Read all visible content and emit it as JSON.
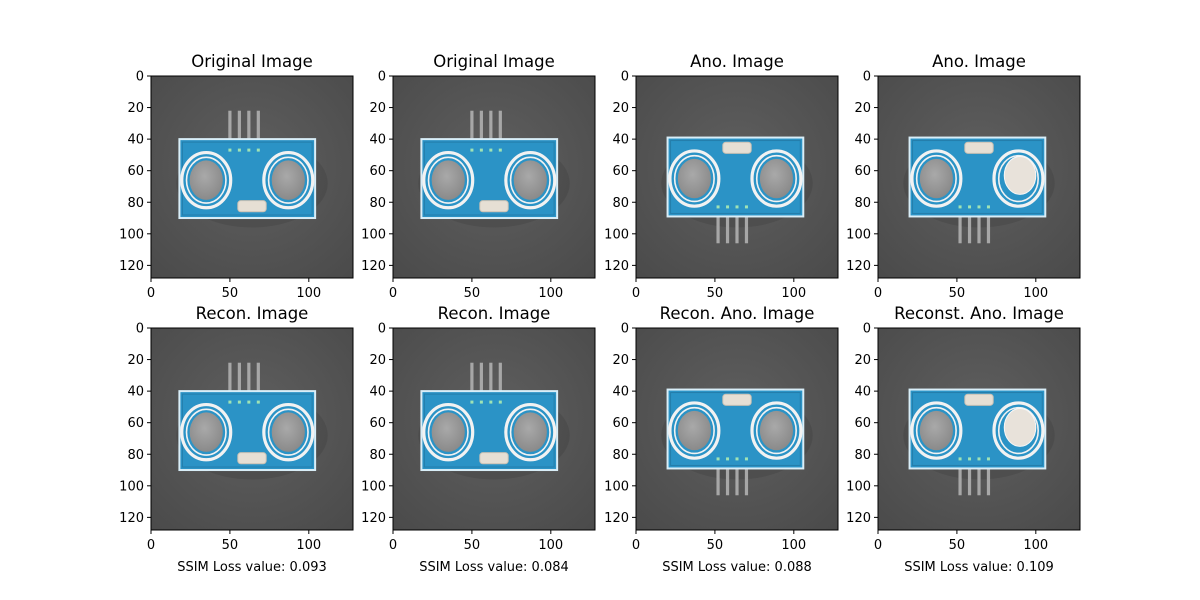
{
  "figure": {
    "colors": {
      "background": "#5f5f5f",
      "background_dark": "#4a4a4a",
      "board": "#2b93c6",
      "board_dark": "#1f6f99",
      "board_edge": "#d9eef8",
      "ring": "#f2f2f2",
      "lens": "#8a8a8a",
      "lens_inner": "#a9a9a9",
      "pin": "#a7a7a7",
      "crystal": "#e6dfd4",
      "bump": "#e8e2da"
    }
  },
  "chart_data": [
    {
      "type": "image",
      "title": "Original Image",
      "xlabel": "",
      "xlim": [
        0,
        128
      ],
      "ylim": [
        128,
        0
      ],
      "xticks": [
        0,
        50,
        100
      ],
      "yticks": [
        0,
        20,
        40,
        60,
        80,
        100,
        120
      ],
      "orientation": "pins-up",
      "has_bump": false
    },
    {
      "type": "image",
      "title": "Original Image",
      "xlabel": "",
      "xlim": [
        0,
        128
      ],
      "ylim": [
        128,
        0
      ],
      "xticks": [
        0,
        50,
        100
      ],
      "yticks": [
        0,
        20,
        40,
        60,
        80,
        100,
        120
      ],
      "orientation": "pins-up",
      "has_bump": false
    },
    {
      "type": "image",
      "title": "Ano. Image",
      "xlabel": "",
      "xlim": [
        0,
        128
      ],
      "ylim": [
        128,
        0
      ],
      "xticks": [
        0,
        50,
        100
      ],
      "yticks": [
        0,
        20,
        40,
        60,
        80,
        100,
        120
      ],
      "orientation": "pins-down",
      "has_bump": false
    },
    {
      "type": "image",
      "title": "Ano. Image",
      "xlabel": "",
      "xlim": [
        0,
        128
      ],
      "ylim": [
        128,
        0
      ],
      "xticks": [
        0,
        50,
        100
      ],
      "yticks": [
        0,
        20,
        40,
        60,
        80,
        100,
        120
      ],
      "orientation": "pins-down",
      "has_bump": true
    },
    {
      "type": "image",
      "title": "Recon. Image",
      "xlabel": "SSIM Loss value: 0.093",
      "xlim": [
        0,
        128
      ],
      "ylim": [
        128,
        0
      ],
      "xticks": [
        0,
        50,
        100
      ],
      "yticks": [
        0,
        20,
        40,
        60,
        80,
        100,
        120
      ],
      "orientation": "pins-up",
      "has_bump": false
    },
    {
      "type": "image",
      "title": "Recon. Image",
      "xlabel": "SSIM Loss value: 0.084",
      "xlim": [
        0,
        128
      ],
      "ylim": [
        128,
        0
      ],
      "xticks": [
        0,
        50,
        100
      ],
      "yticks": [
        0,
        20,
        40,
        60,
        80,
        100,
        120
      ],
      "orientation": "pins-up",
      "has_bump": false
    },
    {
      "type": "image",
      "title": "Recon. Ano. Image",
      "xlabel": "SSIM Loss value: 0.088",
      "xlim": [
        0,
        128
      ],
      "ylim": [
        128,
        0
      ],
      "xticks": [
        0,
        50,
        100
      ],
      "yticks": [
        0,
        20,
        40,
        60,
        80,
        100,
        120
      ],
      "orientation": "pins-down",
      "has_bump": false
    },
    {
      "type": "image",
      "title": "Reconst. Ano. Image",
      "xlabel": "SSIM Loss value: 0.109",
      "xlim": [
        0,
        128
      ],
      "ylim": [
        128,
        0
      ],
      "xticks": [
        0,
        50,
        100
      ],
      "yticks": [
        0,
        20,
        40,
        60,
        80,
        100,
        120
      ],
      "orientation": "pins-down",
      "has_bump": true
    }
  ]
}
